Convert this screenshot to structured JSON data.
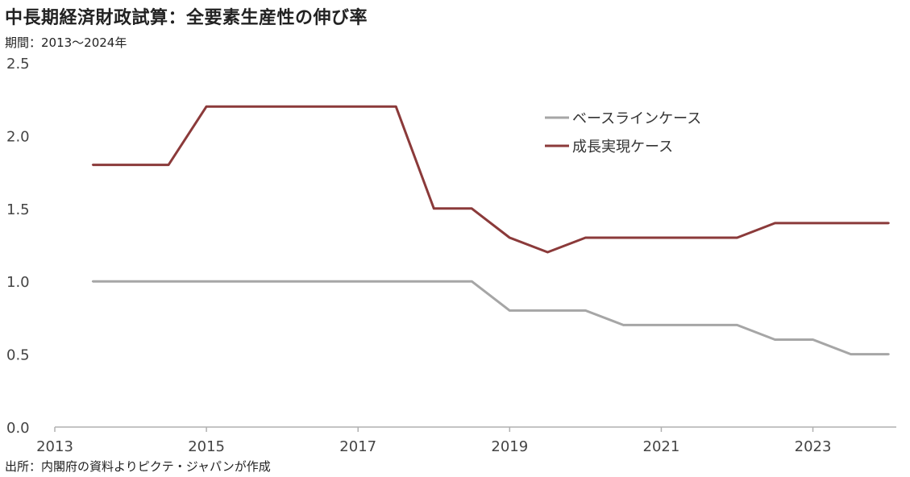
{
  "title": "中長期経済財政試算：全要素生産性の伸び率",
  "subtitle": "期間：2013～2024年",
  "source": "出所：内閣府の資料よりピクテ・ジャパンが作成",
  "chart_data": {
    "type": "line",
    "title": "中長期経済財政試算：全要素生産性の伸び率",
    "xlabel": "",
    "ylabel": "",
    "xlim": [
      2013,
      2024.1
    ],
    "ylim": [
      0,
      2.5
    ],
    "x_ticks": [
      "2013",
      "2015",
      "2017",
      "2019",
      "2021",
      "2023"
    ],
    "y_ticks": [
      "0.0",
      "0.5",
      "1.0",
      "1.5",
      "2.0",
      "2.5"
    ],
    "grid": false,
    "legend_position": "top-right",
    "series": [
      {
        "name": "ベースラインケース",
        "color": "#a6a6a6",
        "x": [
          2013.5,
          2018.5,
          2019.0,
          2020.0,
          2020.5,
          2022.0,
          2022.5,
          2023.0,
          2023.5,
          2024.0
        ],
        "y": [
          1.0,
          1.0,
          0.8,
          0.8,
          0.7,
          0.7,
          0.6,
          0.6,
          0.5,
          0.5
        ]
      },
      {
        "name": "成長実現ケース",
        "color": "#8b3a3a",
        "x": [
          2013.5,
          2014.5,
          2015.0,
          2017.5,
          2018.0,
          2018.5,
          2019.0,
          2019.5,
          2020.0,
          2022.0,
          2022.5,
          2024.0
        ],
        "y": [
          1.8,
          1.8,
          2.2,
          2.2,
          1.5,
          1.5,
          1.3,
          1.2,
          1.3,
          1.3,
          1.4,
          1.4
        ]
      }
    ]
  }
}
